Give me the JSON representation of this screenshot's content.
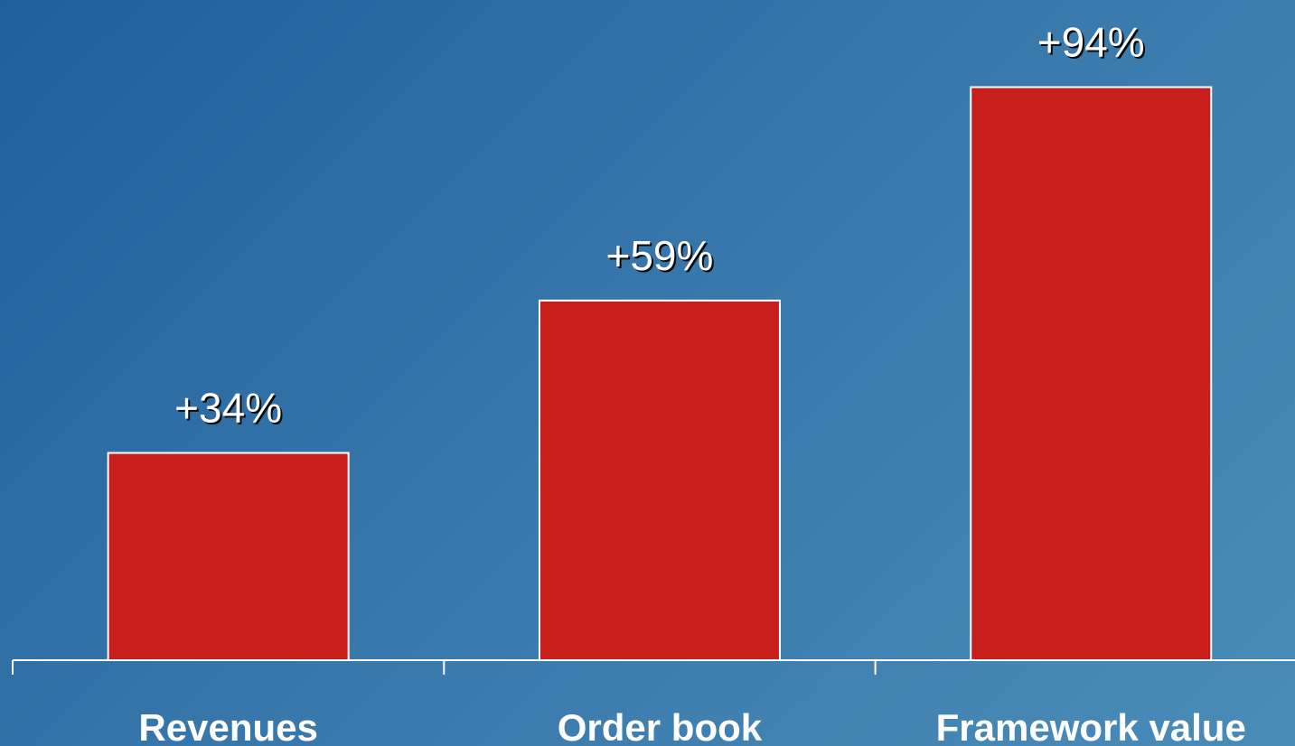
{
  "chart_data": {
    "type": "bar",
    "categories": [
      "Revenues",
      "Order book",
      "Framework value"
    ],
    "values": [
      34,
      59,
      94
    ],
    "data_labels": [
      "+34%",
      "+59%",
      "+94%"
    ],
    "title": "",
    "xlabel": "",
    "ylabel": "",
    "ylim": [
      0,
      100
    ],
    "grid": false,
    "legend": "none",
    "colors": {
      "bar": "#c91f1c",
      "bar_outline": "#ffffff",
      "text": "#ffffff",
      "background_start": "#1f5f9c",
      "background_end": "#4a8cb8"
    }
  }
}
